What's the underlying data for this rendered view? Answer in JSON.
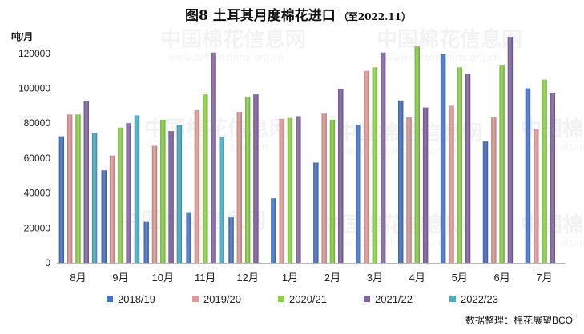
{
  "chart_data": {
    "type": "bar",
    "title": "图8  土耳其月度棉花进口",
    "subtitle": "（至2022.11）",
    "ylabel": "吨/月",
    "ylim": [
      0,
      130000
    ],
    "yticks": [
      0,
      20000,
      40000,
      60000,
      80000,
      100000,
      120000
    ],
    "categories": [
      "8月",
      "9月",
      "10月",
      "11月",
      "12月",
      "1月",
      "2月",
      "3月",
      "4月",
      "5月",
      "6月",
      "7月"
    ],
    "series": [
      {
        "name": "2018/19",
        "color": "#4472c4",
        "values": [
          72500,
          53000,
          23500,
          29000,
          26000,
          37000,
          57500,
          79000,
          93000,
          119500,
          69500,
          100000
        ]
      },
      {
        "name": "2019/20",
        "color": "#e09a96",
        "values": [
          85000,
          61500,
          67000,
          87500,
          86500,
          82500,
          85500,
          110000,
          83500,
          90000,
          83500,
          76500
        ]
      },
      {
        "name": "2020/21",
        "color": "#8bd248",
        "values": [
          85000,
          77500,
          82000,
          96500,
          95000,
          83000,
          82000,
          112000,
          124000,
          112000,
          113500,
          105000
        ]
      },
      {
        "name": "2021/22",
        "color": "#8064a2",
        "values": [
          92500,
          80000,
          75500,
          120500,
          96500,
          84000,
          99500,
          120500,
          89000,
          108500,
          129500,
          97500
        ]
      },
      {
        "name": "2022/23",
        "color": "#4bacc6",
        "values": [
          74500,
          84500,
          79000,
          72000,
          null,
          null,
          null,
          null,
          null,
          null,
          null,
          null
        ]
      }
    ],
    "legend_position": "bottom",
    "grid": false
  },
  "source_note": "数据整理：棉花展望BCO",
  "watermark": {
    "name": "中国棉花信息网",
    "url": "www.cottonchina.org.cn"
  }
}
